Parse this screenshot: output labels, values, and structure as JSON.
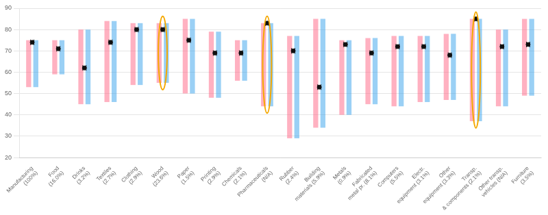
{
  "chart_data": {
    "type": "bar",
    "categories": [
      "Manufacturing\n(100%)",
      "Food\n(16.0%)",
      "Drinks\n(3.2%)",
      "Textiles\n(2.7%)",
      "Clothing\n(2.9%)",
      "Wood\n(23.6%)",
      "Paper\n(1.5%)",
      "Printing\n(2.9%)",
      "Chemicals\n(2.1%)",
      "Pharmaceuticals\n(N/A)",
      "Rubber\n(2.4%)",
      "Building\nmaterials (5.9%)",
      "Metals\n(0.9%)",
      "Fabricated\nmetal pr. (8.1%)",
      "Computers\n(5.5%)",
      "Electr.\nequipment (3.1%)",
      "Other\nequipment (3.3%)",
      "Transp.\n& components (2.1%)",
      "Other transp.\nvehicles (N/A)",
      "Furniture\n(3.5%)"
    ],
    "values": [
      [
        53,
        75
      ],
      [
        59,
        75
      ],
      [
        45,
        80
      ],
      [
        46,
        84
      ],
      [
        54,
        83
      ],
      [
        55,
        83
      ],
      [
        50,
        85
      ],
      [
        48,
        79
      ],
      [
        56,
        75
      ],
      [
        44,
        83
      ],
      [
        29,
        77
      ],
      [
        34,
        85
      ],
      [
        40,
        75
      ],
      [
        45,
        76
      ],
      [
        44,
        77
      ],
      [
        46,
        77
      ],
      [
        47,
        78
      ],
      [
        37,
        85
      ],
      [
        44,
        80
      ],
      [
        49,
        85
      ]
    ],
    "markers": {
      "values": [
        74,
        71,
        62,
        74,
        80,
        80,
        75,
        69,
        69,
        83,
        70,
        53,
        73,
        69,
        72,
        72,
        68,
        85,
        72,
        73
      ],
      "color": "#111111"
    },
    "highlight": {
      "indices": [
        5,
        9,
        17
      ],
      "color": "#f5a800"
    },
    "ylim": [
      20,
      90
    ],
    "yticks": [
      20,
      30,
      40,
      50,
      60,
      70,
      80,
      90
    ],
    "grid": true
  }
}
